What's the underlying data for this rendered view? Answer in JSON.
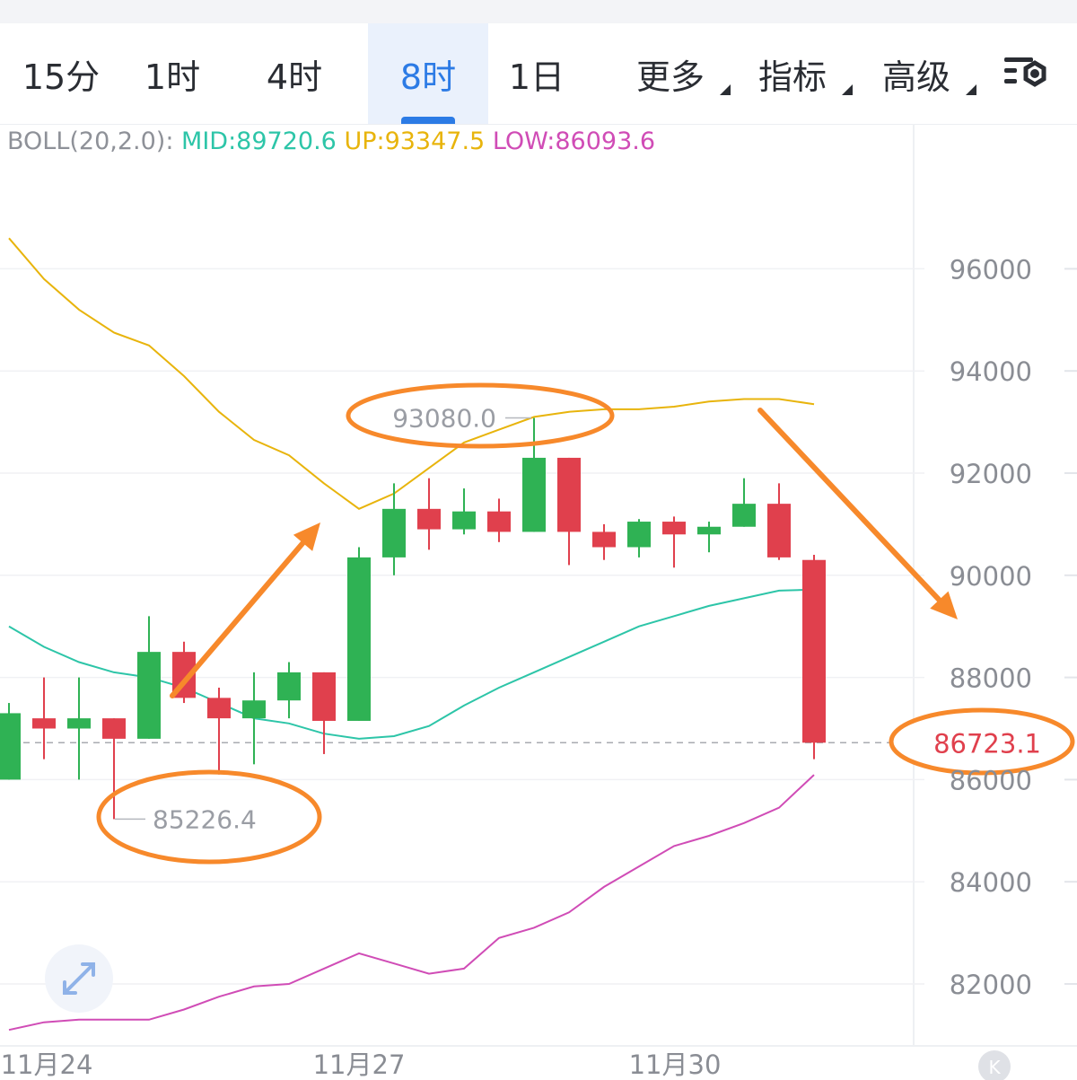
{
  "tabs": [
    {
      "label": "15分",
      "active": false,
      "dropdown": false
    },
    {
      "label": "1时",
      "active": false,
      "dropdown": false
    },
    {
      "label": "4时",
      "active": false,
      "dropdown": false
    },
    {
      "label": "8时",
      "active": true,
      "dropdown": false
    },
    {
      "label": "1日",
      "active": false,
      "dropdown": false
    },
    {
      "label": "更多",
      "active": false,
      "dropdown": true
    },
    {
      "label": "指标",
      "active": false,
      "dropdown": true
    },
    {
      "label": "高级",
      "active": false,
      "dropdown": true
    }
  ],
  "settings_icon": "chart-settings-icon",
  "indicator": {
    "name": "BOLL(20,2.0):",
    "mid": "MID:89720.6",
    "up": "UP:93347.5",
    "low": "LOW:86093.6"
  },
  "colors": {
    "up_candle": "#2fb254",
    "down_candle": "#e0404d",
    "mid_line": "#2dc5a8",
    "upper_line": "#e8b40c",
    "lower_line": "#d04cb6",
    "accent": "#2c7be5",
    "annotation": "#f7892b"
  },
  "annotations": {
    "high_label": "93080.0",
    "low_label": "85226.4",
    "last_price": "86723.1"
  },
  "x_labels": [
    "11月24",
    "11月27",
    "11月30"
  ],
  "zoom_icon": "expand-arrows-icon",
  "corner_icon": "k-badge-icon",
  "corner_text": "K",
  "chart_data": {
    "type": "candlestick",
    "ylim": [
      81000,
      98900
    ],
    "yticks": [
      96000,
      94000,
      92000,
      90000,
      88000,
      86000,
      84000,
      82000
    ],
    "candles": [
      {
        "o": 86000,
        "c": 87300,
        "h": 87500,
        "l": 86000
      },
      {
        "o": 87200,
        "c": 87000,
        "h": 88000,
        "l": 86400
      },
      {
        "o": 87000,
        "c": 87200,
        "h": 88000,
        "l": 86000
      },
      {
        "o": 87200,
        "c": 86800,
        "h": 87200,
        "l": 85226.4
      },
      {
        "o": 86800,
        "c": 88500,
        "h": 89200,
        "l": 86800
      },
      {
        "o": 88500,
        "c": 87600,
        "h": 88700,
        "l": 87500
      },
      {
        "o": 87600,
        "c": 87200,
        "h": 87800,
        "l": 86100
      },
      {
        "o": 87200,
        "c": 87550,
        "h": 88100,
        "l": 86300
      },
      {
        "o": 87550,
        "c": 88100,
        "h": 88300,
        "l": 87200
      },
      {
        "o": 88100,
        "c": 87150,
        "h": 88100,
        "l": 86500
      },
      {
        "o": 87150,
        "c": 90350,
        "h": 90550,
        "l": 87150
      },
      {
        "o": 90350,
        "c": 91300,
        "h": 91800,
        "l": 90000
      },
      {
        "o": 91300,
        "c": 90900,
        "h": 91900,
        "l": 90500
      },
      {
        "o": 90900,
        "c": 91250,
        "h": 91700,
        "l": 90800
      },
      {
        "o": 91250,
        "c": 90850,
        "h": 91500,
        "l": 90650
      },
      {
        "o": 90850,
        "c": 92300,
        "h": 93080,
        "l": 90850
      },
      {
        "o": 92300,
        "c": 90850,
        "h": 92300,
        "l": 90200
      },
      {
        "o": 90850,
        "c": 90550,
        "h": 91000,
        "l": 90300
      },
      {
        "o": 90550,
        "c": 91050,
        "h": 91100,
        "l": 90350
      },
      {
        "o": 91050,
        "c": 90800,
        "h": 91150,
        "l": 90150
      },
      {
        "o": 90800,
        "c": 90950,
        "h": 91050,
        "l": 90450
      },
      {
        "o": 90950,
        "c": 91400,
        "h": 91900,
        "l": 90950
      },
      {
        "o": 91400,
        "c": 90350,
        "h": 91800,
        "l": 90300
      },
      {
        "o": 90300,
        "c": 86723.1,
        "h": 90400,
        "l": 86400
      }
    ],
    "upper_band": [
      96600,
      95800,
      95200,
      94750,
      94500,
      93900,
      93200,
      92650,
      92350,
      91800,
      91300,
      91600,
      92100,
      92600,
      92850,
      93100,
      93200,
      93250,
      93250,
      93300,
      93400,
      93450,
      93450,
      93350
    ],
    "mid_band": [
      89000,
      88600,
      88300,
      88100,
      88000,
      87800,
      87500,
      87200,
      87100,
      86900,
      86800,
      86850,
      87050,
      87450,
      87800,
      88100,
      88400,
      88700,
      89000,
      89200,
      89400,
      89550,
      89700,
      89720.6
    ],
    "lower_band": [
      81100,
      81250,
      81300,
      81300,
      81300,
      81500,
      81750,
      81950,
      82000,
      82300,
      82600,
      82400,
      82200,
      82300,
      82900,
      83100,
      83400,
      83900,
      84300,
      84700,
      84900,
      85150,
      85450,
      86093.6
    ],
    "last_price": 86723.1,
    "max_high": 93080.0,
    "min_low": 85226.4
  }
}
